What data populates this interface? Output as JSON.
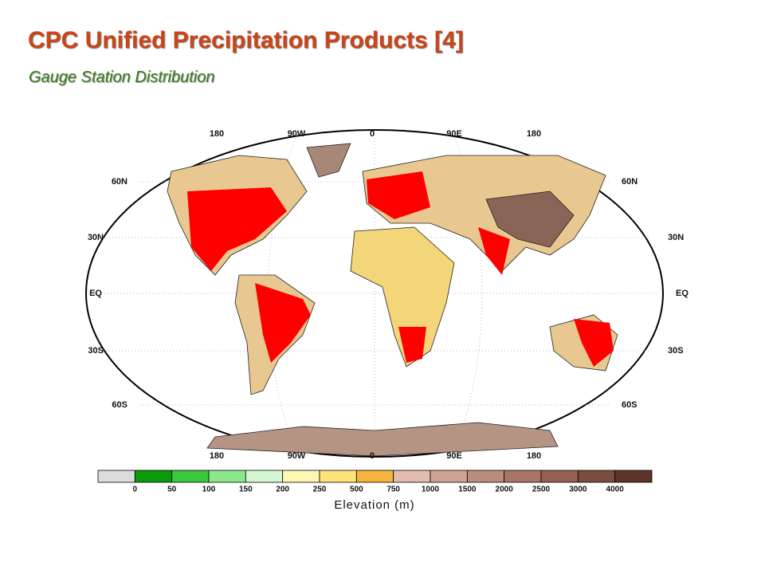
{
  "header": {
    "title": "CPC Unified Precipitation Products [4]",
    "subtitle": "Gauge Station Distribution"
  },
  "map": {
    "top_labels": [
      "180",
      "90W",
      "0",
      "90E",
      "180"
    ],
    "bottom_labels": [
      "180",
      "90W",
      "0",
      "90E",
      "180"
    ],
    "left_labels": [
      "60N",
      "30N",
      "EQ",
      "30S",
      "60S"
    ],
    "right_labels": [
      "60N",
      "30N",
      "EQ",
      "30S",
      "60S"
    ]
  },
  "colorbar": {
    "title": "Elevation (m)",
    "labels": [
      "0",
      "50",
      "100",
      "150",
      "200",
      "250",
      "500",
      "750",
      "1000",
      "1500",
      "2000",
      "2500",
      "3000",
      "4000"
    ],
    "colors": [
      "#dcdcdc",
      "#0a9a0a",
      "#3cc83c",
      "#8ce68c",
      "#d2f7d2",
      "#fdf7b4",
      "#fde37a",
      "#f5b43c",
      "#e2bcae",
      "#cfa394",
      "#bc8c7c",
      "#a87566",
      "#946052",
      "#7d4c40",
      "#5e3328"
    ]
  }
}
